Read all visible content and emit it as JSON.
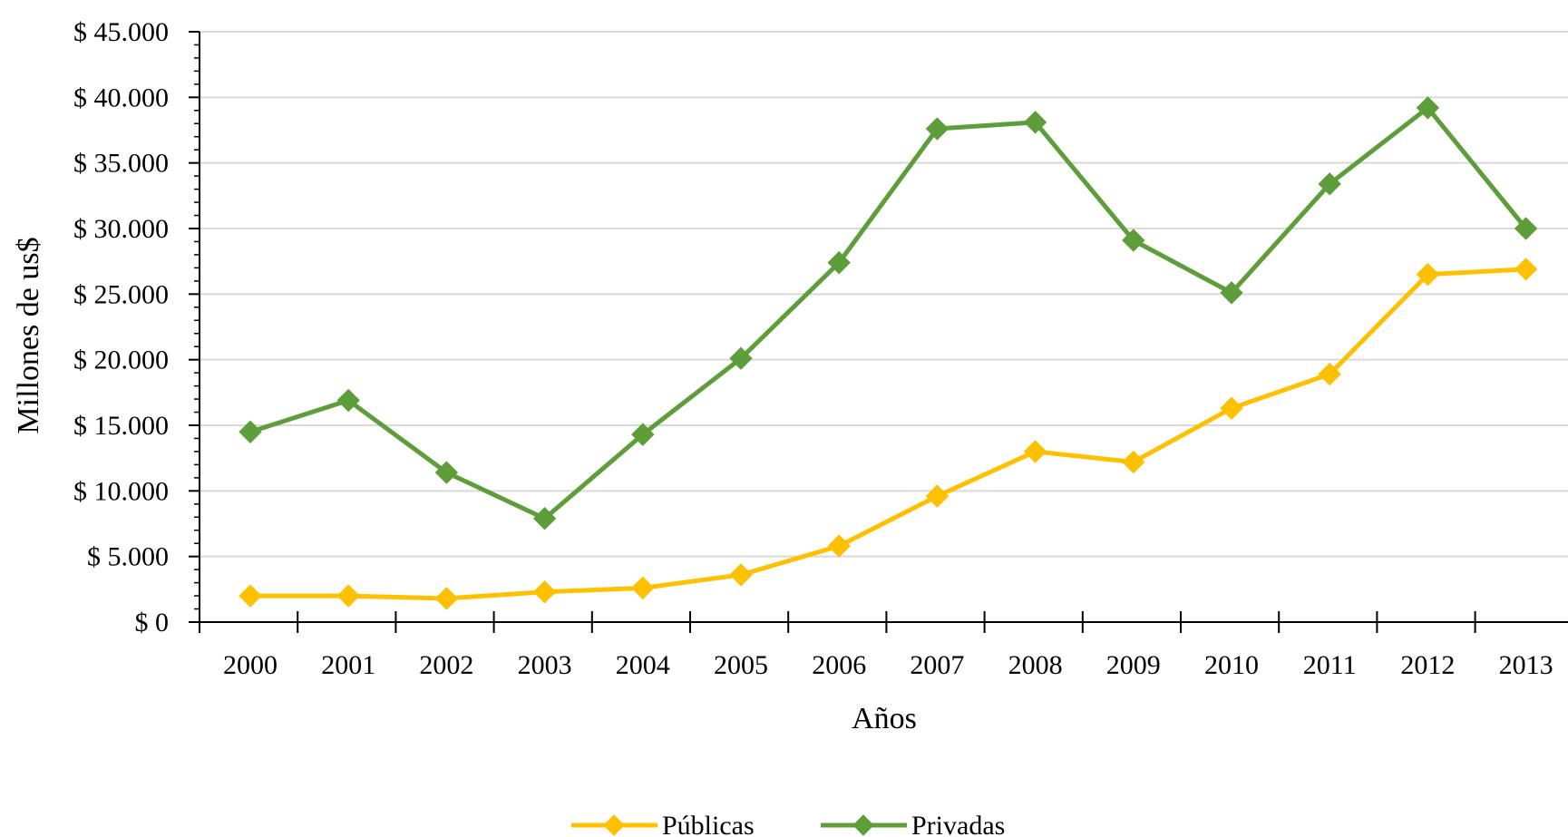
{
  "chart_data": {
    "type": "line",
    "title": "",
    "xlabel": "Años",
    "ylabel": "Millones de us$",
    "categories": [
      "2000",
      "2001",
      "2002",
      "2003",
      "2004",
      "2005",
      "2006",
      "2007",
      "2008",
      "2009",
      "2010",
      "2011",
      "2012",
      "2013"
    ],
    "ylim": [
      0,
      45000
    ],
    "ytick_values": [
      0,
      5000,
      10000,
      15000,
      20000,
      25000,
      30000,
      35000,
      40000,
      45000
    ],
    "ytick_labels": [
      "$ 0",
      "$ 5.000",
      "$ 10.000",
      "$ 15.000",
      "$ 20.000",
      "$ 25.000",
      "$ 30.000",
      "$ 35.000",
      "$ 40.000",
      "$ 45.000"
    ],
    "grid": true,
    "legend_position": "bottom",
    "series": [
      {
        "name": "Públicas",
        "color": "#FFC000",
        "marker": "diamond",
        "values": [
          2000,
          2000,
          1800,
          2300,
          2600,
          3600,
          5800,
          9600,
          13000,
          12200,
          16300,
          18900,
          26500,
          26900
        ]
      },
      {
        "name": "Privadas",
        "color": "#5E9E3A",
        "marker": "diamond",
        "values": [
          14500,
          16900,
          11400,
          7900,
          14300,
          20100,
          27400,
          37600,
          38100,
          29100,
          25100,
          33400,
          39200,
          30000
        ]
      }
    ]
  }
}
